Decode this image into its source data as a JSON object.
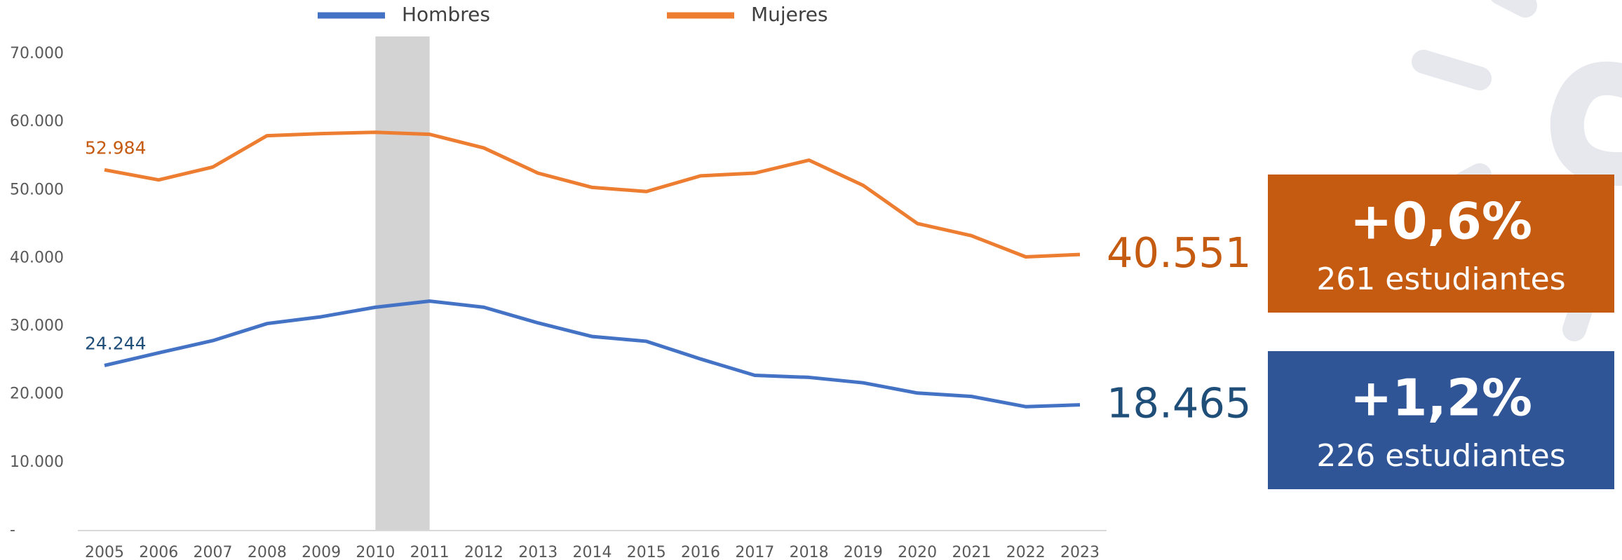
{
  "chart_data": {
    "type": "line",
    "categories": [
      "2005",
      "2006",
      "2007",
      "2008",
      "2009",
      "2010",
      "2011",
      "2012",
      "2013",
      "2014",
      "2015",
      "2016",
      "2017",
      "2018",
      "2019",
      "2020",
      "2021",
      "2022",
      "2023"
    ],
    "series": [
      {
        "name": "Hombres",
        "color": "#4472c4",
        "label_color": "#1f4e79",
        "values": [
          24244,
          26100,
          27900,
          30400,
          31400,
          32800,
          33700,
          32800,
          30500,
          28500,
          27800,
          25200,
          22800,
          22500,
          21700,
          20200,
          19700,
          18200,
          18465
        ],
        "value_labels": [
          "24.244",
          null,
          null,
          null,
          null,
          null,
          null,
          null,
          null,
          null,
          null,
          null,
          null,
          null,
          null,
          null,
          null,
          null,
          "18.465"
        ]
      },
      {
        "name": "Mujeres",
        "color": "#ed7d31",
        "label_color": "#c55a11",
        "values": [
          52984,
          51500,
          53400,
          58000,
          58300,
          58500,
          58200,
          56200,
          52500,
          50400,
          49800,
          52100,
          52500,
          54400,
          50700,
          45100,
          43300,
          40200,
          40551
        ],
        "value_labels": [
          "52.984",
          null,
          null,
          null,
          null,
          null,
          null,
          null,
          null,
          null,
          null,
          null,
          null,
          null,
          null,
          null,
          null,
          null,
          "40.551"
        ]
      }
    ],
    "ylim": [
      0,
      70000
    ],
    "yticks": [
      {
        "value": 0,
        "label": "-"
      },
      {
        "value": 10000,
        "label": "10.000"
      },
      {
        "value": 20000,
        "label": "20.000"
      },
      {
        "value": 30000,
        "label": "30.000"
      },
      {
        "value": 40000,
        "label": "40.000"
      },
      {
        "value": 50000,
        "label": "50.000"
      },
      {
        "value": 60000,
        "label": "60.000"
      },
      {
        "value": 70000,
        "label": "70.000"
      }
    ],
    "grid": false,
    "highlight_range": [
      "2010",
      "2011"
    ],
    "highlight_color": "#d3d3d3",
    "callouts": [
      {
        "value": "+0,6%",
        "text": "261 estudiantes",
        "color": "#c55a11"
      },
      {
        "value": "+1,2%",
        "text": "226 estudiantes",
        "color": "#2f5597"
      }
    ]
  }
}
